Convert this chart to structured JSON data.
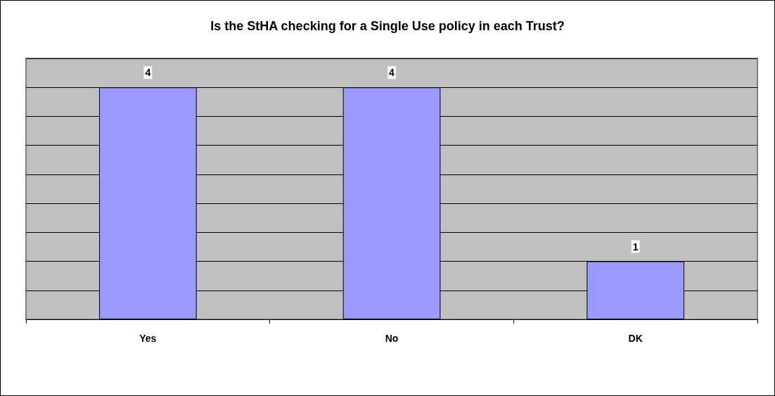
{
  "chart_data": {
    "type": "bar",
    "title": "Is the StHA checking for a Single Use policy in each Trust?",
    "categories": [
      "Yes",
      "No",
      "DK"
    ],
    "values": [
      4,
      4,
      1
    ],
    "color": "#9999ff",
    "data_labels": true,
    "grid": "y",
    "tick_labels": "x",
    "ylim": [
      0,
      4.5
    ],
    "yticks": [
      {
        "value": 0,
        "label": null
      },
      {
        "value": 0.5,
        "label": null
      },
      {
        "value": 1,
        "label": null
      },
      {
        "value": 1.5,
        "label": null
      },
      {
        "value": 2,
        "label": null
      },
      {
        "value": 2.5,
        "label": null
      },
      {
        "value": 3,
        "label": null
      },
      {
        "value": 3.5,
        "label": null
      },
      {
        "value": 4,
        "label": null
      },
      {
        "value": 4.5,
        "label": null
      }
    ]
  }
}
